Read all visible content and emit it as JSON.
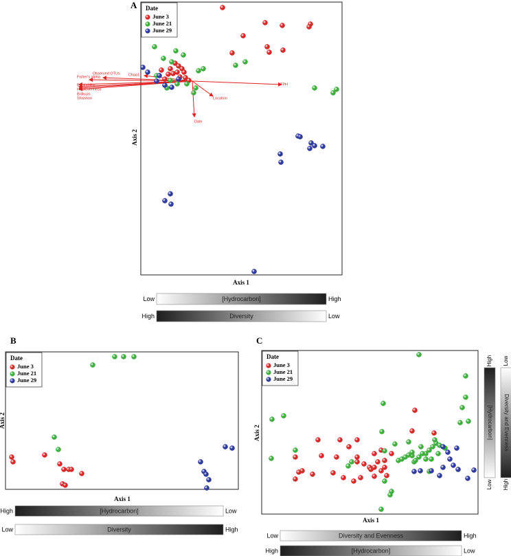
{
  "chart_data": [
    {
      "type": "scatter",
      "panel": "A",
      "xlabel": "Axis 1",
      "ylabel": "Axis 2",
      "legend_title": "Date",
      "legend": "upper left",
      "xlim": [
        0,
        293
      ],
      "ylim": [
        0,
        397
      ],
      "series": [
        {
          "name": "June 3",
          "color": "#d42a2a",
          "x": [
            119,
            181,
            206,
            247,
            245,
            149,
            184,
            207,
            133,
            187,
            50,
            55,
            43,
            60,
            47,
            65,
            35,
            70,
            53,
            40,
            57,
            30,
            63
          ],
          "y": [
            389,
            367,
            363,
            365,
            361,
            348,
            332,
            327,
            323,
            324,
            308,
            304,
            300,
            300,
            293,
            287,
            285,
            283,
            295,
            292,
            288,
            298,
            295
          ]
        },
        {
          "name": "June 21",
          "color": "#3fae3f",
          "x": [
            8,
            20,
            51,
            62,
            138,
            152,
            91,
            84,
            253,
            285,
            280,
            33,
            45,
            38,
            77,
            67,
            43,
            53,
            23,
            80
          ],
          "y": [
            352,
            332,
            326,
            320,
            305,
            310,
            300,
            297,
            272,
            270,
            265,
            315,
            310,
            272,
            265,
            278,
            283,
            278,
            290,
            272
          ]
        },
        {
          "name": "June 29",
          "color": "#2e3a9a",
          "x": [
            3,
            10,
            27,
            23,
            35,
            45,
            55,
            229,
            232,
            248,
            265,
            253,
            246,
            203,
            204,
            43,
            35,
            44,
            165
          ],
          "y": [
            302,
            295,
            290,
            282,
            276,
            273,
            285,
            202,
            201,
            192,
            187,
            188,
            184,
            176,
            164,
            118,
            108,
            103,
            5
          ]
        }
      ],
      "vector_color": "#e02020",
      "vector_origin": {
        "x": 75,
        "y": 282
      },
      "vectors": [
        {
          "label": "TPH",
          "x": 205,
          "y": 277
        },
        {
          "label": "Location",
          "x": 105,
          "y": 260
        },
        {
          "label": "Date",
          "x": 78,
          "y": 230
        },
        {
          "label": "Observed OTUs",
          "x": -55,
          "y": 287
        },
        {
          "label": "Fisher's alpha",
          "x": -75,
          "y": 284
        },
        {
          "label": "Chao1",
          "x": 5,
          "y": 290
        },
        {
          "label": "Equitability",
          "x": -90,
          "y": 277
        },
        {
          "label": "HeipEvenness",
          "x": -90,
          "y": 274
        },
        {
          "label": "Brillouin",
          "x": -90,
          "y": 272
        },
        {
          "label": "Shannon",
          "x": -90,
          "y": 270
        }
      ],
      "gradients": [
        {
          "start": "Low",
          "label": "[Hydrocarbon]",
          "end": "High",
          "from": "#ffffff",
          "to": "#1e1e1e"
        },
        {
          "start": "High",
          "label": "Diversity",
          "end": "Low",
          "from": "#1e1e1e",
          "to": "#ffffff"
        }
      ]
    },
    {
      "type": "scatter",
      "panel": "B",
      "xlabel": "Axis 1",
      "ylabel": "Axis 2",
      "legend_title": "Date",
      "legend": "upper left",
      "xlim": [
        0,
        339
      ],
      "ylim": [
        0,
        200
      ],
      "series": [
        {
          "name": "June 3",
          "color": "#d42a2a",
          "x": [
            9,
            11,
            57,
            79,
            85,
            92,
            96,
            111,
            83,
            87
          ],
          "y": [
            47,
            40,
            50,
            37,
            29,
            29,
            29,
            23,
            8,
            6
          ]
        },
        {
          "name": "June 21",
          "color": "#3fae3f",
          "x": [
            127,
            159,
            172,
            187,
            71,
            77
          ],
          "y": [
            181,
            193,
            193,
            193,
            76,
            58
          ]
        },
        {
          "name": "June 29",
          "color": "#2e3a9a",
          "x": [
            320,
            330,
            284,
            289,
            292,
            296,
            293
          ],
          "y": [
            62,
            60,
            40,
            26,
            22,
            14,
            2
          ]
        }
      ],
      "gradients": [
        {
          "start": "High",
          "label": "[Hydrocarbon]",
          "end": "Low",
          "from": "#1e1e1e",
          "to": "#ffffff"
        },
        {
          "start": "Low",
          "label": "Diversity",
          "end": "High",
          "from": "#ffffff",
          "to": "#1e1e1e"
        }
      ]
    },
    {
      "type": "scatter",
      "panel": "C",
      "xlabel": "Axis 1",
      "ylabel": "Axis 2",
      "legend_title": "Date",
      "legend": "upper left",
      "xlim": [
        0,
        315
      ],
      "ylim": [
        0,
        238
      ],
      "series": [
        {
          "name": "June 3",
          "color": "#d42a2a",
          "x": [
            223,
            219,
            251,
            139,
            139,
            87,
            109,
            149,
            157,
            164,
            169,
            174,
            179,
            164,
            144,
            134,
            104,
            119,
            49,
            49,
            59,
            74,
            54,
            139,
            174,
            164,
            182,
            189,
            127,
            114,
            82,
            179,
            159
          ],
          "y": [
            151,
            121,
            118,
            83,
            76,
            85,
            83,
            73,
            68,
            68,
            76,
            63,
            78,
            55,
            53,
            48,
            60,
            53,
            83,
            51,
            63,
            58,
            61,
            108,
            93,
            88,
            56,
            88,
            98,
            108,
            108,
            68,
            65
          ]
        },
        {
          "name": "June 21",
          "color": "#3fae3f",
          "x": [
            229,
            297,
            292,
            297,
            289,
            301,
            15,
            32,
            49,
            14,
            177,
            175,
            194,
            214,
            179,
            219,
            222,
            179,
            189,
            174,
            239,
            244,
            249,
            254,
            259,
            267,
            229,
            234,
            224,
            199,
            204,
            209,
            214,
            219,
            252,
            257,
            247,
            232,
            239,
            131,
            126,
            244,
            187
          ],
          "y": [
            232,
            201,
            155,
            170,
            133,
            135,
            138,
            143,
            93,
            81,
            161,
            120,
            102,
            105,
            92,
            85,
            76,
            48,
            33,
            7,
            88,
            93,
            98,
            103,
            100,
            96,
            83,
            88,
            78,
            78,
            80,
            83,
            86,
            90,
            108,
            88,
            80,
            98,
            80,
            76,
            70,
            62,
            28
          ]
        },
        {
          "name": "June 29",
          "color": "#2e3a9a",
          "x": [
            264,
            284,
            271,
            222,
            231,
            247,
            264,
            279,
            286,
            309,
            300,
            274,
            259
          ],
          "y": [
            98,
            96,
            90,
            62,
            63,
            63,
            68,
            71,
            65,
            64,
            52,
            80,
            56
          ]
        }
      ],
      "gradients": [
        {
          "start": "High",
          "label": "[Hydrocarbon]",
          "end": "Low",
          "from": "#1e1e1e",
          "to": "#ffffff",
          "orientation": "vertical"
        },
        {
          "start": "Low",
          "label": "Diversity and Evenness",
          "end": "High",
          "from": "#ffffff",
          "to": "#1e1e1e",
          "orientation": "vertical"
        },
        {
          "start": "Low",
          "label": "Diversity and Evenness",
          "end": "High",
          "from": "#ffffff",
          "to": "#1e1e1e"
        },
        {
          "start": "High",
          "label": "[Hydrocarbon]",
          "end": "Low",
          "from": "#1e1e1e",
          "to": "#ffffff"
        }
      ]
    }
  ]
}
